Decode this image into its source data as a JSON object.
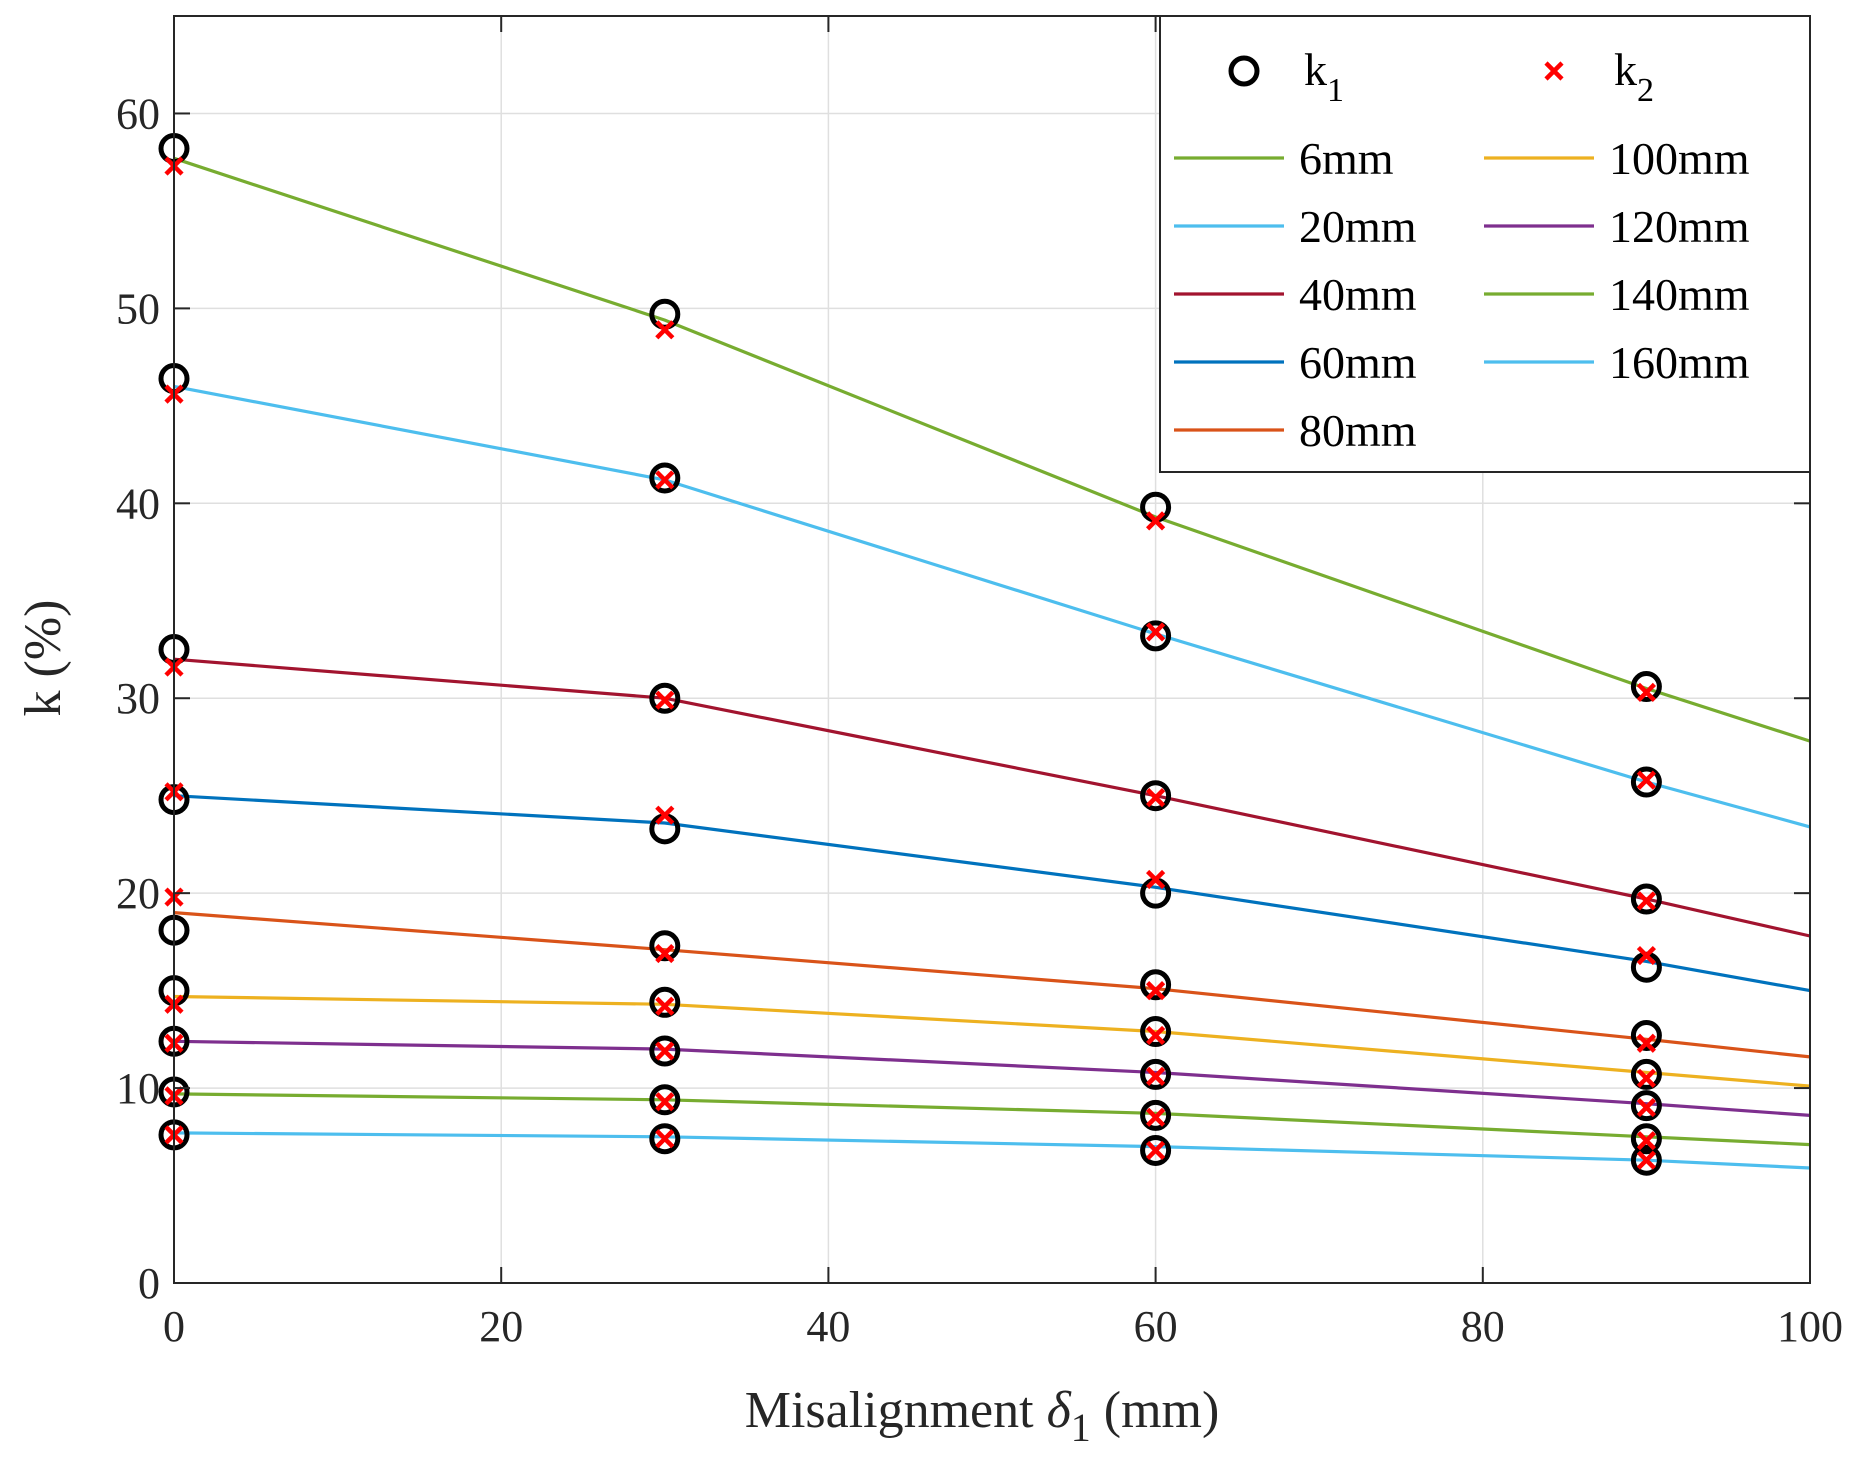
{
  "chart_data": {
    "type": "scatter",
    "xlabel": "Misalignment δ1 (mm)",
    "xlabel_parts": {
      "main": "Misalignment ",
      "symbol": "δ",
      "sub": "1",
      "rest": " (mm)"
    },
    "ylabel": "k (%)",
    "xlim": [
      0,
      100
    ],
    "ylim": [
      0,
      65
    ],
    "xticks": [
      0,
      20,
      40,
      60,
      80,
      100
    ],
    "yticks": [
      0,
      10,
      20,
      30,
      40,
      50,
      60
    ],
    "xtick_labels": [
      "0",
      "20",
      "40",
      "60",
      "80",
      "100"
    ],
    "ytick_labels": [
      "0",
      "10",
      "20",
      "30",
      "40",
      "50",
      "60"
    ],
    "grid": true,
    "legend_position": "top-right",
    "marker_series": [
      {
        "name": "k1",
        "label_main": "k",
        "label_sub": "1",
        "marker": "circle",
        "color": "#000000",
        "x": [
          0,
          30,
          60,
          90
        ],
        "values": [
          [
            58.2,
            49.7,
            39.8,
            30.6
          ],
          [
            46.4,
            41.3,
            33.2,
            25.7
          ],
          [
            32.5,
            30.0,
            25.0,
            19.7
          ],
          [
            24.8,
            23.3,
            20.0,
            16.2
          ],
          [
            18.1,
            17.3,
            15.3,
            12.7
          ],
          [
            15.0,
            14.4,
            12.9,
            10.7
          ],
          [
            12.4,
            11.9,
            10.7,
            9.1
          ],
          [
            9.8,
            9.4,
            8.6,
            7.4
          ],
          [
            7.6,
            7.4,
            6.8,
            6.3
          ]
        ]
      },
      {
        "name": "k2",
        "label_main": "k",
        "label_sub": "2",
        "marker": "x",
        "color": "#ff0000",
        "x": [
          0,
          30,
          60,
          90
        ],
        "values": [
          [
            57.3,
            48.9,
            39.1,
            30.3
          ],
          [
            45.6,
            41.2,
            33.4,
            25.8
          ],
          [
            31.6,
            29.9,
            24.9,
            19.6
          ],
          [
            25.2,
            24.0,
            20.7,
            16.8
          ],
          [
            19.8,
            16.9,
            15.0,
            12.3
          ],
          [
            14.3,
            14.2,
            12.7,
            10.5
          ],
          [
            12.3,
            11.9,
            10.6,
            9.0
          ],
          [
            9.6,
            9.3,
            8.5,
            7.3
          ],
          [
            7.6,
            7.4,
            6.8,
            6.3
          ]
        ]
      }
    ],
    "line_series": [
      {
        "name": "6mm",
        "color": "#77ac30",
        "x": [
          0,
          30,
          60,
          90,
          100
        ],
        "y": [
          57.7,
          49.4,
          39.3,
          30.5,
          27.8
        ]
      },
      {
        "name": "20mm",
        "color": "#4dbeee",
        "x": [
          0,
          30,
          60,
          90,
          100
        ],
        "y": [
          46.0,
          41.2,
          33.3,
          25.7,
          23.4
        ]
      },
      {
        "name": "40mm",
        "color": "#a2142f",
        "x": [
          0,
          30,
          60,
          90,
          100
        ],
        "y": [
          32.0,
          30.0,
          25.0,
          19.7,
          17.8
        ]
      },
      {
        "name": "60mm",
        "color": "#0072bd",
        "x": [
          0,
          30,
          60,
          90,
          100
        ],
        "y": [
          25.0,
          23.6,
          20.3,
          16.5,
          15.0
        ]
      },
      {
        "name": "80mm",
        "color": "#d95319",
        "x": [
          0,
          30,
          60,
          90,
          100
        ],
        "y": [
          19.0,
          17.1,
          15.1,
          12.5,
          11.6
        ]
      },
      {
        "name": "100mm",
        "color": "#edb120",
        "x": [
          0,
          30,
          60,
          90,
          100
        ],
        "y": [
          14.7,
          14.3,
          12.9,
          10.8,
          10.1
        ]
      },
      {
        "name": "120mm",
        "color": "#7e2f8e",
        "x": [
          0,
          30,
          60,
          90,
          100
        ],
        "y": [
          12.4,
          12.0,
          10.8,
          9.2,
          8.6
        ]
      },
      {
        "name": "140mm",
        "color": "#77ac30",
        "x": [
          0,
          30,
          60,
          90,
          100
        ],
        "y": [
          9.7,
          9.4,
          8.7,
          7.5,
          7.1
        ]
      },
      {
        "name": "160mm",
        "color": "#4dbeee",
        "x": [
          0,
          30,
          60,
          90,
          100
        ],
        "y": [
          7.7,
          7.5,
          7.0,
          6.3,
          5.9
        ]
      }
    ],
    "legend_layout": [
      [
        "k1",
        "k2"
      ],
      [
        "6mm",
        "100mm"
      ],
      [
        "20mm",
        "120mm"
      ],
      [
        "40mm",
        "140mm"
      ],
      [
        "60mm",
        "160mm"
      ],
      [
        "80mm",
        null
      ]
    ]
  }
}
